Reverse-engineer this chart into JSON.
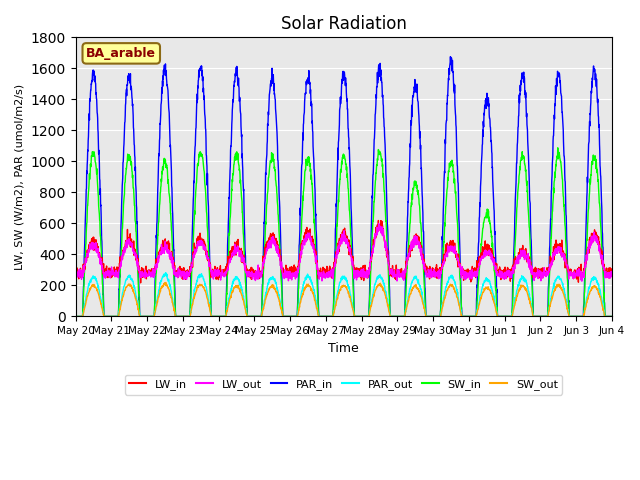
{
  "title": "Solar Radiation",
  "ylabel": "LW, SW (W/m2), PAR (umol/m2/s)",
  "xlabel": "Time",
  "ylim": [
    0,
    1800
  ],
  "annotation": "BA_arable",
  "bg_color": "#e8e8e8",
  "series": {
    "LW_in": {
      "color": "#ff0000",
      "base": 320,
      "noise": 20
    },
    "LW_out": {
      "color": "#ff00ff",
      "base": 310,
      "noise": 15
    },
    "PAR_in": {
      "color": "#0000ff",
      "base": 0,
      "noise": 80
    },
    "PAR_out": {
      "color": "#00ffff",
      "base": 0,
      "noise": 20
    },
    "SW_in": {
      "color": "#00ff00",
      "base": 0,
      "noise": 50
    },
    "SW_out": {
      "color": "#ffa500",
      "base": 0,
      "noise": 15
    }
  },
  "n_days": 15,
  "samples_per_day": 144,
  "tick_labels": [
    "May 20",
    "May 21",
    "May 22",
    "May 23",
    "May 24",
    "May 25",
    "May 26",
    "May 27",
    "May 28",
    "May 29",
    "May 30",
    "May 31",
    "Jun 1",
    "Jun 2",
    "Jun 3",
    "Jun 4"
  ],
  "peak_heights": {
    "PAR_in": [
      1570,
      1550,
      1600,
      1610,
      1580,
      1540,
      1550,
      1570,
      1590,
      1500,
      1650,
      1400,
      1560,
      1560,
      1590
    ],
    "SW_in": [
      1050,
      1040,
      1000,
      1060,
      1050,
      1030,
      1020,
      1040,
      1060,
      860,
      1000,
      670,
      1040,
      1050,
      1040
    ],
    "LW_in": [
      480,
      490,
      470,
      500,
      450,
      520,
      540,
      530,
      580,
      500,
      460,
      440,
      420,
      450,
      530
    ],
    "LW_out": [
      460,
      480,
      440,
      480,
      430,
      490,
      520,
      510,
      570,
      490,
      440,
      420,
      400,
      430,
      510
    ],
    "PAR_out": [
      255,
      260,
      270,
      265,
      250,
      250,
      260,
      255,
      260,
      250,
      255,
      240,
      250,
      255,
      250
    ],
    "SW_out": [
      200,
      205,
      210,
      208,
      195,
      195,
      200,
      200,
      205,
      195,
      200,
      185,
      195,
      200,
      195
    ]
  },
  "plot_order": [
    "PAR_in",
    "SW_in",
    "PAR_out",
    "SW_out",
    "LW_in",
    "LW_out"
  ],
  "legend_order": [
    "LW_in",
    "LW_out",
    "PAR_in",
    "PAR_out",
    "SW_in",
    "SW_out"
  ]
}
